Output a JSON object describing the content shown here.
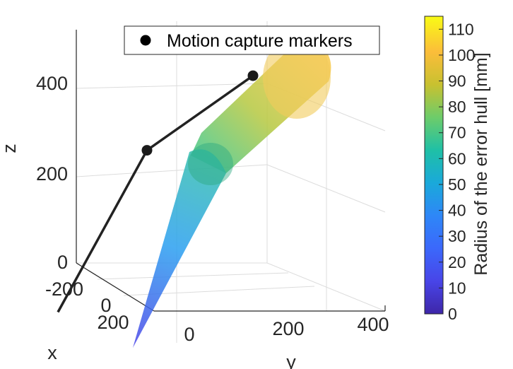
{
  "chart_data": {
    "type": "line",
    "title": "",
    "xlabel": "x",
    "ylabel": "y",
    "zlabel": "z",
    "x_ticks": [
      "-200",
      "0",
      "200"
    ],
    "y_ticks": [
      "0",
      "200",
      "400"
    ],
    "z_ticks": [
      "0",
      "200",
      "400"
    ],
    "grid": true,
    "legend": {
      "position": "top",
      "entries": [
        "Motion capture markers"
      ]
    },
    "series": [
      {
        "name": "Motion capture markers",
        "x": [
          300,
          0,
          0
        ],
        "y": [
          -150,
          0,
          250
        ],
        "z": [
          0,
          270,
          420
        ],
        "color": "#000000",
        "hull_radius_mm": [
          0,
          70,
          110
        ]
      }
    ],
    "colorbar": {
      "label": "Radius of the error hull [mm]",
      "ticks": [
        "0",
        "10",
        "20",
        "30",
        "40",
        "50",
        "60",
        "70",
        "80",
        "90",
        "100",
        "110"
      ],
      "range": [
        0,
        115
      ],
      "colormap": "parula",
      "colors": [
        "#3e26a8",
        "#4845e8",
        "#2e87f7",
        "#1aa9da",
        "#1fc0a6",
        "#6dcc6a",
        "#c8c130",
        "#fbbd3a",
        "#f5e626",
        "#f9fb15"
      ]
    }
  }
}
